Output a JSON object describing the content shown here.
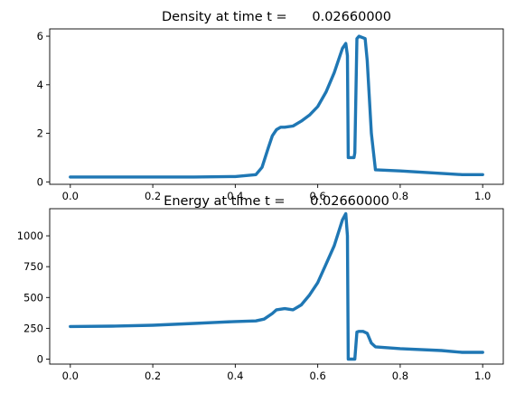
{
  "colors": {
    "line": "#1f77b4"
  },
  "chart_data": [
    {
      "type": "line",
      "title": "Density at time t =      0.02660000",
      "xlabel": "",
      "ylabel": "",
      "xlim": [
        -0.05,
        1.05
      ],
      "ylim": [
        -0.1,
        6.3
      ],
      "xticks": [
        0.0,
        0.2,
        0.4,
        0.6,
        0.8,
        1.0
      ],
      "xtick_labels": [
        "0.0",
        "0.2",
        "0.4",
        "0.6",
        "0.8",
        "1.0"
      ],
      "yticks": [
        0,
        2,
        4,
        6
      ],
      "ytick_labels": [
        "0",
        "2",
        "4",
        "6"
      ],
      "grid": false,
      "series": [
        {
          "x": [
            0.0,
            0.1,
            0.2,
            0.3,
            0.4,
            0.45,
            0.465,
            0.48,
            0.49,
            0.5,
            0.51,
            0.52,
            0.54,
            0.56,
            0.58,
            0.6,
            0.62,
            0.64,
            0.66,
            0.668,
            0.672,
            0.674,
            0.676,
            0.688,
            0.69,
            0.695,
            0.7,
            0.715,
            0.72,
            0.73,
            0.74,
            0.8,
            0.9,
            0.95,
            1.0
          ],
          "y": [
            0.2,
            0.2,
            0.2,
            0.2,
            0.22,
            0.3,
            0.6,
            1.4,
            1.9,
            2.15,
            2.25,
            2.25,
            2.3,
            2.5,
            2.75,
            3.1,
            3.7,
            4.5,
            5.5,
            5.7,
            5.2,
            1.0,
            1.0,
            1.0,
            1.2,
            5.9,
            6.0,
            5.9,
            5.0,
            2.0,
            0.5,
            0.45,
            0.35,
            0.3,
            0.3
          ]
        }
      ]
    },
    {
      "type": "line",
      "title": "Energy at time t =      0.02660000",
      "xlabel": "",
      "ylabel": "",
      "xlim": [
        -0.05,
        1.05
      ],
      "ylim": [
        -40,
        1220
      ],
      "xticks": [
        0.0,
        0.2,
        0.4,
        0.6,
        0.8,
        1.0
      ],
      "xtick_labels": [
        "0.0",
        "0.2",
        "0.4",
        "0.6",
        "0.8",
        "1.0"
      ],
      "yticks": [
        0,
        250,
        500,
        750,
        1000
      ],
      "ytick_labels": [
        "0",
        "250",
        "500",
        "750",
        "1000"
      ],
      "grid": false,
      "series": [
        {
          "x": [
            0.0,
            0.1,
            0.2,
            0.3,
            0.35,
            0.4,
            0.45,
            0.47,
            0.49,
            0.5,
            0.52,
            0.54,
            0.56,
            0.58,
            0.6,
            0.62,
            0.64,
            0.66,
            0.668,
            0.672,
            0.674,
            0.676,
            0.69,
            0.695,
            0.7,
            0.71,
            0.72,
            0.73,
            0.74,
            0.8,
            0.9,
            0.95,
            1.0
          ],
          "y": [
            265,
            268,
            275,
            290,
            298,
            305,
            310,
            325,
            370,
            400,
            410,
            400,
            440,
            520,
            620,
            770,
            920,
            1130,
            1180,
            1000,
            0,
            0,
            0,
            220,
            225,
            225,
            210,
            130,
            100,
            85,
            70,
            55,
            55
          ]
        }
      ]
    }
  ]
}
